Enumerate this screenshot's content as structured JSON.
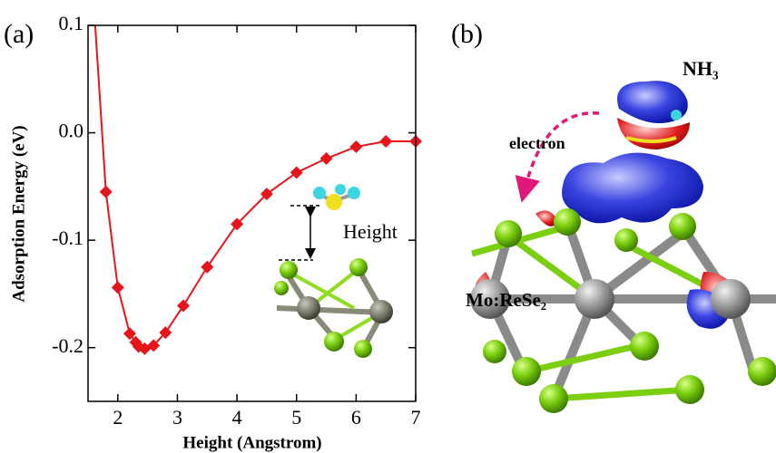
{
  "chart_data": {
    "type": "line",
    "panel_labels": [
      "(a)",
      "(b)"
    ],
    "xlabel": "Height (Angstrom)",
    "ylabel": "Adsorption Energy (eV)",
    "x": [
      1.62,
      1.8,
      2.0,
      2.2,
      2.3,
      2.35,
      2.45,
      2.6,
      2.8,
      3.1,
      3.5,
      4.0,
      4.5,
      5.0,
      5.5,
      6.0,
      6.5,
      7.0
    ],
    "series": [
      {
        "color": "#e8141c",
        "values": [
          0.1,
          -0.055,
          -0.144,
          -0.187,
          -0.195,
          -0.199,
          -0.201,
          -0.198,
          -0.186,
          -0.161,
          -0.125,
          -0.085,
          -0.057,
          -0.037,
          -0.024,
          -0.013,
          -0.008,
          -0.008
        ]
      }
    ],
    "xlim": [
      1.5,
      7
    ],
    "xticks": [
      2,
      3,
      4,
      5,
      6,
      7
    ],
    "ylim": [
      -0.25,
      0.1
    ],
    "yticks": [
      0.1,
      {
        "value": 0,
        "label": "0.0"
      },
      -0.1,
      -0.2
    ],
    "inset_label": "Height",
    "panel_b": {
      "molecule": "NH₃",
      "arrow_label": "electron",
      "substrate": "Mo:ReSe₂"
    }
  }
}
